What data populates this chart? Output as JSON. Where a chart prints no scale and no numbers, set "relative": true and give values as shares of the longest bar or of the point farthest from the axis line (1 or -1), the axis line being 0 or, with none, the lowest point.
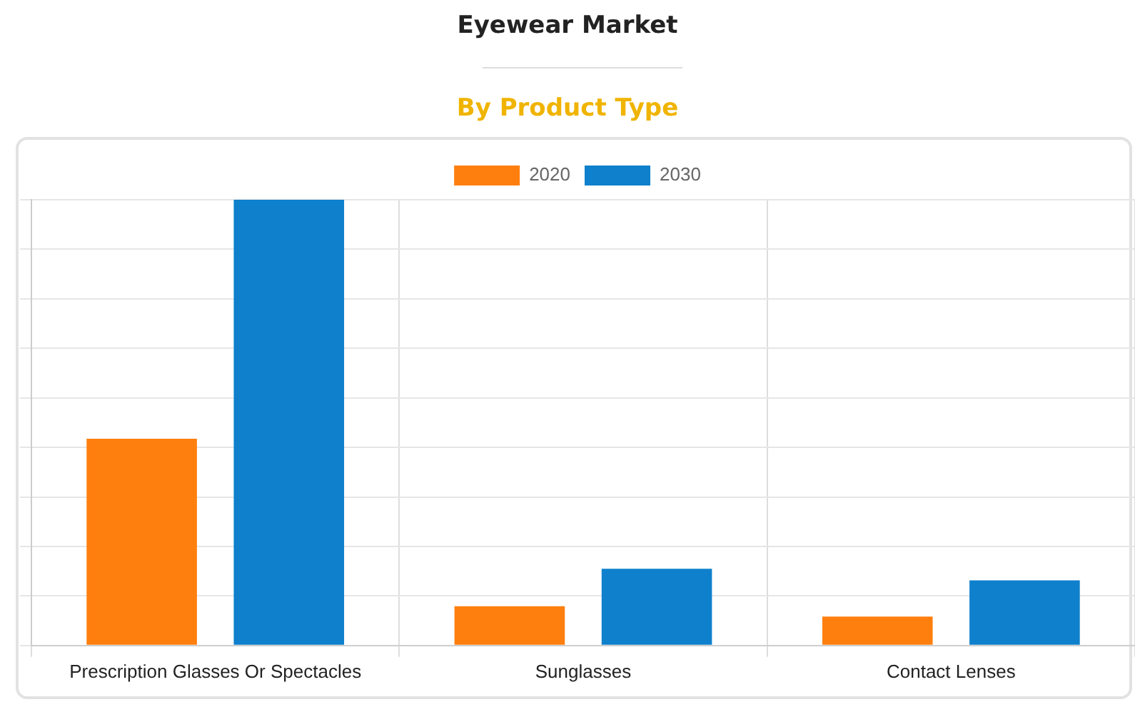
{
  "chart_data": {
    "type": "bar",
    "title": "Eyewear Market",
    "subtitle": "By Product Type",
    "relative": true,
    "grid": true,
    "legend": "top",
    "categories": [
      "Prescription Glasses Or Spectacles",
      "Sunglasses",
      "Contact Lenses"
    ],
    "series": [
      {
        "name": "2020",
        "color": "#ff7f0e",
        "values": [
          0.464,
          0.088,
          0.065
        ]
      },
      {
        "name": "2030",
        "color": "#0e80cc",
        "values": [
          1,
          0.172,
          0.146
        ]
      }
    ]
  }
}
